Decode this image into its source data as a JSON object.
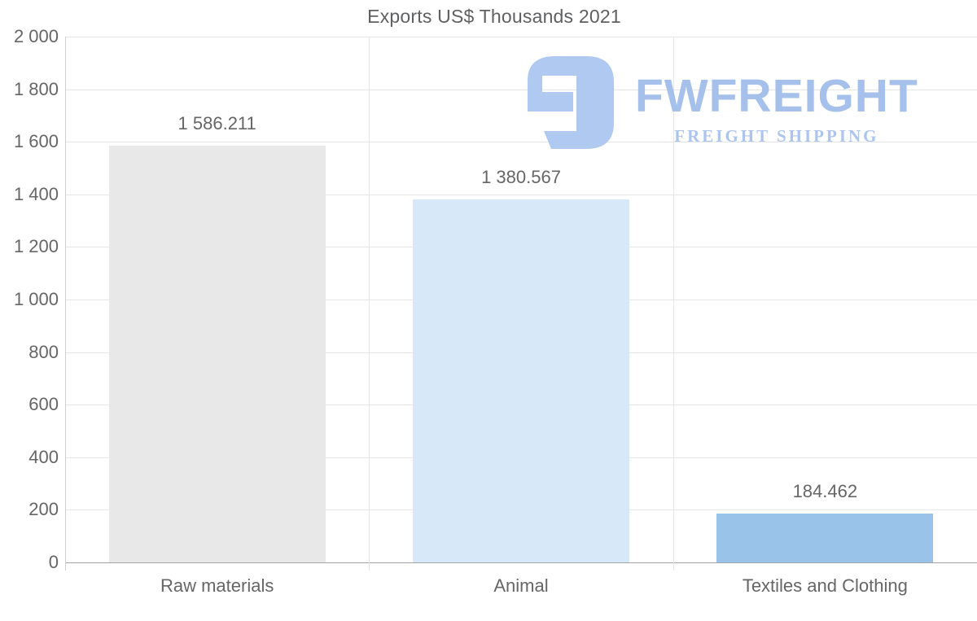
{
  "chart_data": {
    "type": "bar",
    "title": "Exports US$ Thousands 2021",
    "categories": [
      "Raw materials",
      "Animal",
      "Textiles and Clothing"
    ],
    "values": [
      1586.211,
      1380.567,
      184.462
    ],
    "value_labels": [
      "1 586.211",
      "1 380.567",
      "184.462"
    ],
    "bar_colors": [
      "#e8e8e8",
      "#d7e8f9",
      "#99c3e8"
    ],
    "xlabel": "",
    "ylabel": "",
    "ylim": [
      0,
      2000
    ],
    "y_ticks": [
      {
        "value": 0,
        "label": "0"
      },
      {
        "value": 200,
        "label": "200"
      },
      {
        "value": 400,
        "label": "400"
      },
      {
        "value": 600,
        "label": "600"
      },
      {
        "value": 800,
        "label": "800"
      },
      {
        "value": 1000,
        "label": "1 000"
      },
      {
        "value": 1200,
        "label": "1 200"
      },
      {
        "value": 1400,
        "label": "1 400"
      },
      {
        "value": 1600,
        "label": "1 600"
      },
      {
        "value": 1800,
        "label": "1 800"
      },
      {
        "value": 2000,
        "label": "2 000"
      }
    ],
    "grid": true,
    "legend": "none"
  },
  "logo": {
    "text": "FWFREIGHT",
    "subtext": "FREIGHT SHIPPING",
    "text_color": "#a2beeb",
    "subtext_color": "#a9c2ee",
    "icon": "freight-logo-mark",
    "icon_color": "#adc7f1"
  },
  "colors": {
    "background": "#ffffff",
    "gridline": "#e6e6e6",
    "zero_baseline": "#a3a3a3",
    "axis_line": "#cfcfcf",
    "label_text": "#666666",
    "title_text": "#5f6062"
  }
}
